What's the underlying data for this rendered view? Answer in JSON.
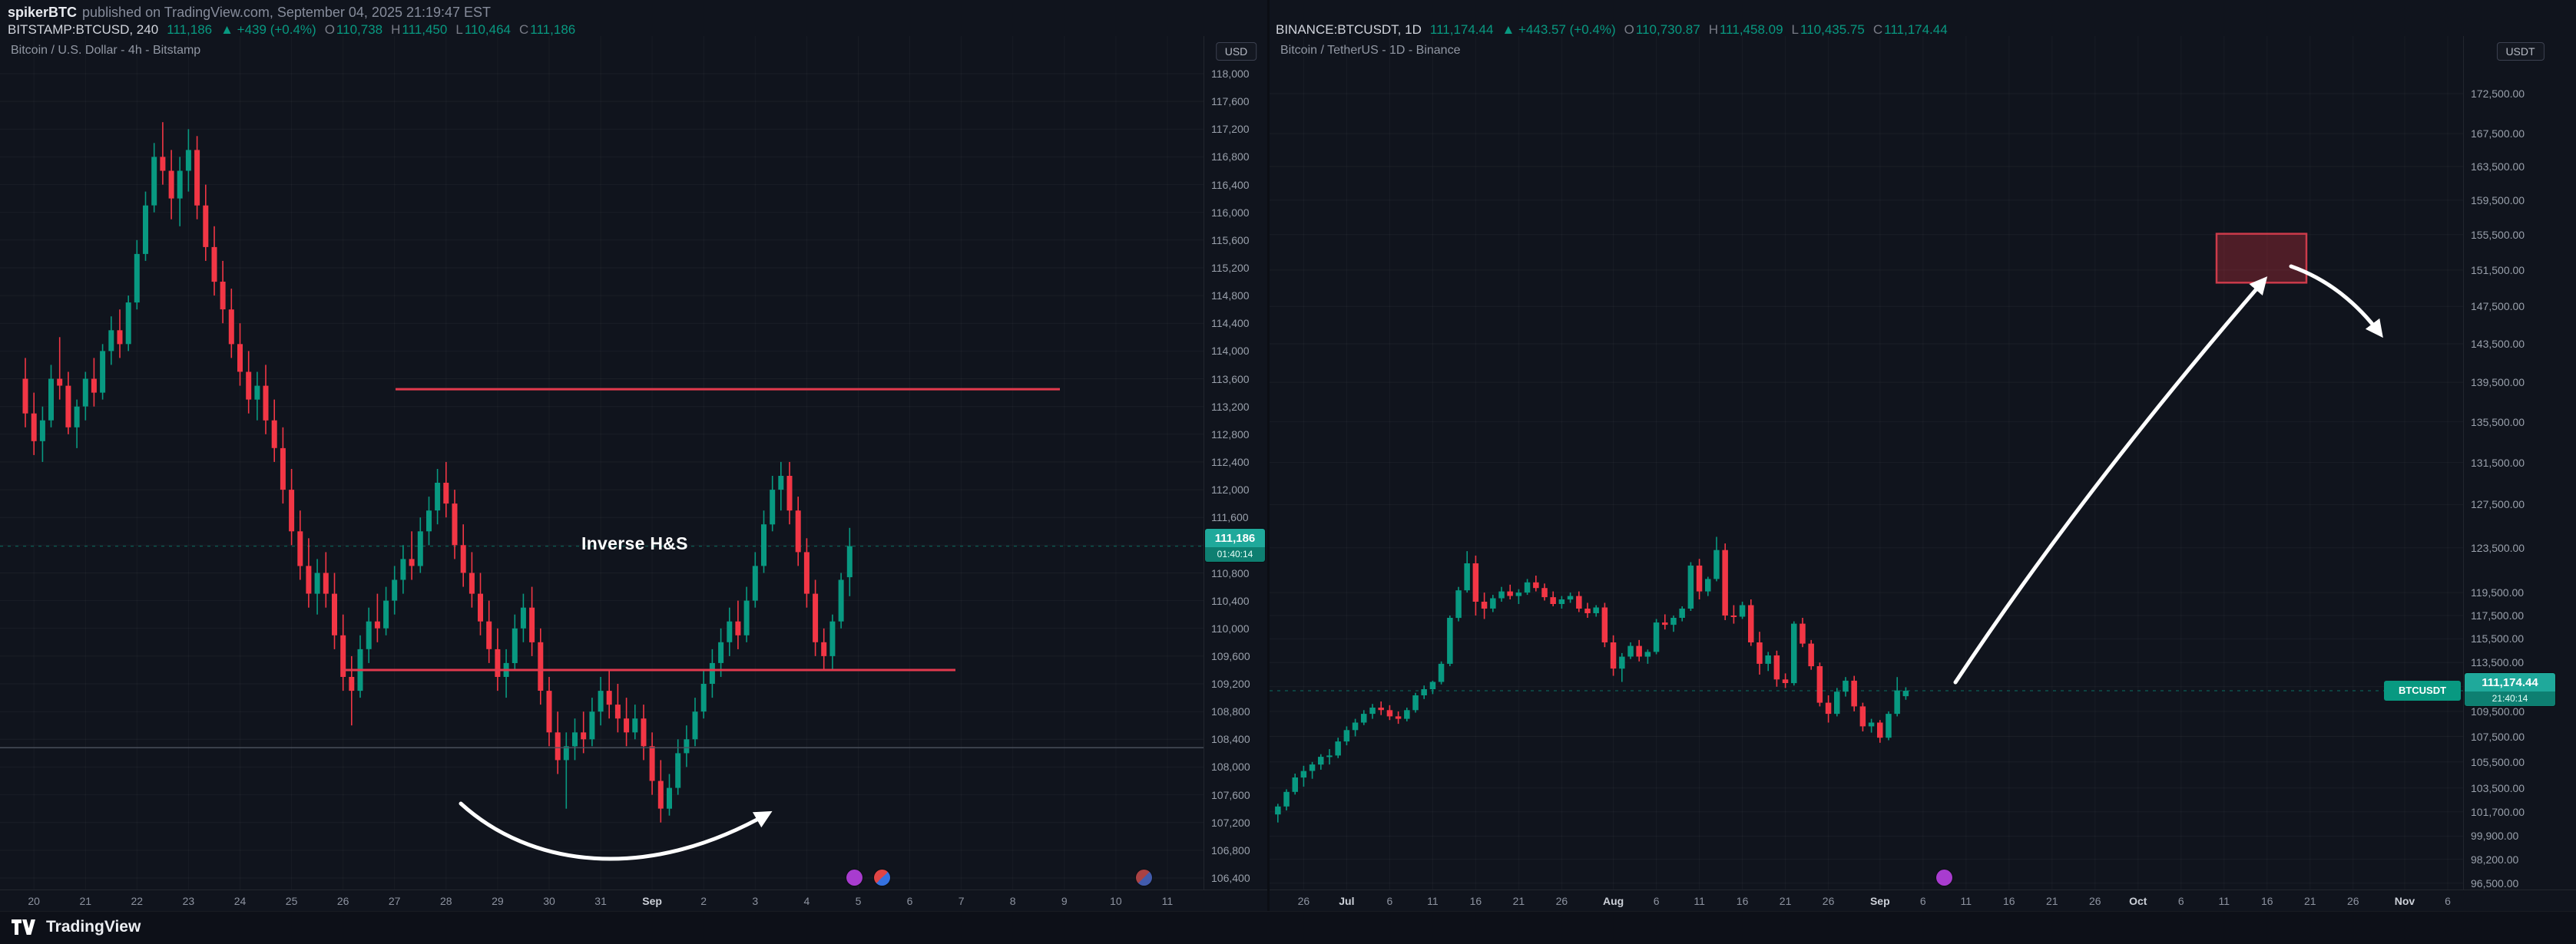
{
  "header": {
    "byline_user": "spikerBTC",
    "byline_rest": "published on TradingView.com, September 04, 2025 21:19:47 EST"
  },
  "colors": {
    "up": "#089981",
    "down": "#f23645",
    "level_red": "#e23a4e",
    "level_gray": "#4d5360",
    "badge": "#1fa99b",
    "annotation_white": "#ffffff"
  },
  "footer": {
    "brand": "TradingView",
    "logo_icon": "tradingview-logo-icon"
  },
  "left": {
    "title": "Bitcoin / U.S. Dollar - 4h - Bitstamp",
    "currency": "USD",
    "legend": {
      "symbol": "BITSTAMP:BTCUSD, 240",
      "last": "111,186",
      "change": "▲ +439 (+0.4%)",
      "o_label": "O",
      "o": "110,738",
      "h_label": "H",
      "h": "111,450",
      "l_label": "L",
      "l": "110,464",
      "c_label": "C",
      "c": "111,186"
    },
    "badge": {
      "price": "111,186",
      "countdown": "01:40:14"
    },
    "annotation": "Inverse H&S",
    "y_axis": {
      "price_top": 118000,
      "price_bottom": 106400
    },
    "y_labels": [
      "118,000",
      "117,600",
      "117,200",
      "116,800",
      "116,400",
      "116,000",
      "115,600",
      "115,200",
      "114,800",
      "114,400",
      "114,000",
      "113,600",
      "113,200",
      "112,800",
      "112,400",
      "112,000",
      "111,600",
      "111,200",
      "110,800",
      "110,400",
      "110,000",
      "109,600",
      "109,200",
      "108,800",
      "108,400",
      "108,000",
      "107,600",
      "107,200",
      "106,800",
      "106,400"
    ],
    "x_labels": [
      [
        "20",
        1
      ],
      [
        "21",
        7
      ],
      [
        "22",
        13
      ],
      [
        "23",
        19
      ],
      [
        "24",
        25
      ],
      [
        "25",
        31
      ],
      [
        "26",
        37
      ],
      [
        "27",
        43
      ],
      [
        "28",
        49
      ],
      [
        "29",
        55
      ],
      [
        "30",
        61
      ],
      [
        "31",
        67
      ],
      [
        "Sep",
        73
      ],
      [
        "2",
        79
      ],
      [
        "3",
        85
      ],
      [
        "4",
        91
      ],
      [
        "5",
        97
      ],
      [
        "6",
        103
      ],
      [
        "7",
        109
      ],
      [
        "8",
        115
      ],
      [
        "9",
        121
      ],
      [
        "10",
        127
      ],
      [
        "11",
        133
      ]
    ],
    "levels": [
      {
        "name": "resistance-line",
        "price": 113450
      },
      {
        "name": "neckline-support",
        "price": 109400
      },
      {
        "name": "gray-level-line",
        "price": 108280
      }
    ],
    "last_price": 111186,
    "candles": [
      [
        113600,
        113900,
        112900,
        113100
      ],
      [
        113100,
        113400,
        112500,
        112700
      ],
      [
        112700,
        113200,
        112400,
        113000
      ],
      [
        113000,
        113800,
        112900,
        113600
      ],
      [
        113600,
        114200,
        113300,
        113500
      ],
      [
        113500,
        113700,
        112800,
        112900
      ],
      [
        112900,
        113300,
        112600,
        113200
      ],
      [
        113200,
        113700,
        113000,
        113600
      ],
      [
        113600,
        113900,
        113200,
        113400
      ],
      [
        113400,
        114100,
        113300,
        114000
      ],
      [
        114000,
        114500,
        113800,
        114300
      ],
      [
        114300,
        114600,
        113900,
        114100
      ],
      [
        114100,
        114800,
        114000,
        114700
      ],
      [
        114700,
        115600,
        114600,
        115400
      ],
      [
        115400,
        116300,
        115300,
        116100
      ],
      [
        116100,
        117000,
        116000,
        116800
      ],
      [
        116800,
        117300,
        116400,
        116600
      ],
      [
        116600,
        116900,
        115900,
        116200
      ],
      [
        116200,
        116800,
        115800,
        116600
      ],
      [
        116600,
        117200,
        116300,
        116900
      ],
      [
        116900,
        117100,
        115900,
        116100
      ],
      [
        116100,
        116400,
        115300,
        115500
      ],
      [
        115500,
        115800,
        114800,
        115000
      ],
      [
        115000,
        115300,
        114400,
        114600
      ],
      [
        114600,
        114900,
        113900,
        114100
      ],
      [
        114100,
        114400,
        113500,
        113700
      ],
      [
        113700,
        114000,
        113100,
        113300
      ],
      [
        113300,
        113700,
        113000,
        113500
      ],
      [
        113500,
        113800,
        112800,
        113000
      ],
      [
        113000,
        113300,
        112400,
        112600
      ],
      [
        112600,
        112900,
        111800,
        112000
      ],
      [
        112000,
        112300,
        111200,
        111400
      ],
      [
        111400,
        111700,
        110700,
        110900
      ],
      [
        110900,
        111300,
        110300,
        110500
      ],
      [
        110500,
        111000,
        110200,
        110800
      ],
      [
        110800,
        111100,
        110300,
        110500
      ],
      [
        110500,
        110800,
        109700,
        109900
      ],
      [
        109900,
        110200,
        109100,
        109300
      ],
      [
        109300,
        109600,
        108600,
        109100
      ],
      [
        109100,
        109900,
        109000,
        109700
      ],
      [
        109700,
        110300,
        109500,
        110100
      ],
      [
        110100,
        110500,
        109800,
        110000
      ],
      [
        110000,
        110600,
        109900,
        110400
      ],
      [
        110400,
        110900,
        110200,
        110700
      ],
      [
        110700,
        111200,
        110500,
        111000
      ],
      [
        111000,
        111400,
        110700,
        110900
      ],
      [
        110900,
        111600,
        110800,
        111400
      ],
      [
        111400,
        111900,
        111200,
        111700
      ],
      [
        111700,
        112300,
        111500,
        112100
      ],
      [
        112100,
        112400,
        111600,
        111800
      ],
      [
        111800,
        112000,
        111000,
        111200
      ],
      [
        111200,
        111500,
        110600,
        110800
      ],
      [
        110800,
        111100,
        110300,
        110500
      ],
      [
        110500,
        110800,
        109900,
        110100
      ],
      [
        110100,
        110400,
        109500,
        109700
      ],
      [
        109700,
        110000,
        109100,
        109300
      ],
      [
        109300,
        109700,
        109000,
        109500
      ],
      [
        109500,
        110200,
        109400,
        110000
      ],
      [
        110000,
        110500,
        109800,
        110300
      ],
      [
        110300,
        110600,
        109600,
        109800
      ],
      [
        109800,
        110000,
        108900,
        109100
      ],
      [
        109100,
        109300,
        108300,
        108500
      ],
      [
        108500,
        108800,
        107900,
        108100
      ],
      [
        108100,
        108500,
        107400,
        108300
      ],
      [
        108300,
        108700,
        108100,
        108500
      ],
      [
        108500,
        108800,
        108200,
        108400
      ],
      [
        108400,
        109000,
        108300,
        108800
      ],
      [
        108800,
        109300,
        108600,
        109100
      ],
      [
        109100,
        109400,
        108700,
        108900
      ],
      [
        108900,
        109200,
        108500,
        108700
      ],
      [
        108700,
        109000,
        108300,
        108500
      ],
      [
        108500,
        108900,
        108400,
        108700
      ],
      [
        108700,
        108900,
        108100,
        108300
      ],
      [
        108300,
        108500,
        107600,
        107800
      ],
      [
        107800,
        108100,
        107200,
        107400
      ],
      [
        107400,
        107900,
        107300,
        107700
      ],
      [
        107700,
        108400,
        107600,
        108200
      ],
      [
        108200,
        108600,
        108000,
        108400
      ],
      [
        108400,
        109000,
        108300,
        108800
      ],
      [
        108800,
        109400,
        108700,
        109200
      ],
      [
        109200,
        109700,
        109000,
        109500
      ],
      [
        109500,
        110000,
        109300,
        109800
      ],
      [
        109800,
        110300,
        109600,
        110100
      ],
      [
        110100,
        110400,
        109700,
        109900
      ],
      [
        109900,
        110600,
        109800,
        110400
      ],
      [
        110400,
        111100,
        110300,
        110900
      ],
      [
        110900,
        111700,
        110800,
        111500
      ],
      [
        111500,
        112200,
        111400,
        112000
      ],
      [
        112000,
        112400,
        111700,
        112200
      ],
      [
        112200,
        112400,
        111500,
        111700
      ],
      [
        111700,
        111900,
        110900,
        111100
      ],
      [
        111100,
        111300,
        110300,
        110500
      ],
      [
        110500,
        110700,
        109600,
        109800
      ],
      [
        109800,
        110000,
        109400,
        109600
      ],
      [
        109600,
        110200,
        109400,
        110100
      ],
      [
        110100,
        110800,
        110000,
        110700
      ],
      [
        110738,
        111450,
        110464,
        111186
      ]
    ],
    "event_icons": [
      "calendar-event-purple",
      "economic-event-flag",
      "economic-event-flag-2"
    ]
  },
  "right": {
    "title": "Bitcoin / TetherUS - 1D - Binance",
    "currency": "USDT",
    "symbol_tag": "BTCUSDT",
    "legend": {
      "symbol": "BINANCE:BTCUSDT, 1D",
      "last": "111,174.44",
      "change": "▲ +443.57 (+0.4%)",
      "o_label": "O",
      "o": "110,730.87",
      "h_label": "H",
      "h": "111,458.09",
      "l_label": "L",
      "l": "110,435.75",
      "c_label": "C",
      "c": "111,174.44"
    },
    "badge": {
      "price": "111,174.44",
      "countdown": "21:40:14"
    },
    "y_labels": [
      "172,500.00",
      "167,500.00",
      "163,500.00",
      "159,500.00",
      "155,500.00",
      "151,500.00",
      "147,500.00",
      "143,500.00",
      "139,500.00",
      "135,500.00",
      "131,500.00",
      "127,500.00",
      "123,500.00",
      "119,500.00",
      "117,500.00",
      "115,500.00",
      "113,500.00",
      "111,500.00",
      "109,500.00",
      "107,500.00",
      "105,500.00",
      "103,500.00",
      "101,700.00",
      "99,900.00",
      "98,200.00",
      "96,500.00"
    ],
    "x_labels": [
      [
        "26",
        3
      ],
      [
        "Jul",
        8
      ],
      [
        "6",
        13
      ],
      [
        "11",
        18
      ],
      [
        "16",
        23
      ],
      [
        "21",
        28
      ],
      [
        "26",
        33
      ],
      [
        "Aug",
        39
      ],
      [
        "6",
        44
      ],
      [
        "11",
        49
      ],
      [
        "16",
        54
      ],
      [
        "21",
        59
      ],
      [
        "26",
        64
      ],
      [
        "Sep",
        70
      ],
      [
        "6",
        75
      ],
      [
        "11",
        80
      ],
      [
        "16",
        85
      ],
      [
        "21",
        90
      ],
      [
        "26",
        95
      ],
      [
        "Oct",
        100
      ],
      [
        "6",
        105
      ],
      [
        "11",
        110
      ],
      [
        "16",
        115
      ],
      [
        "21",
        120
      ],
      [
        "26",
        125
      ],
      [
        "Nov",
        131
      ],
      [
        "6",
        136
      ]
    ],
    "target_box": {
      "price_top": 155600,
      "price_bottom": 150100
    },
    "last_price": 111174.44,
    "candles": [
      [
        101500,
        102300,
        100900,
        102100
      ],
      [
        102100,
        103400,
        101800,
        103200
      ],
      [
        103200,
        104600,
        103000,
        104300
      ],
      [
        104300,
        105200,
        103600,
        104800
      ],
      [
        104800,
        105500,
        104200,
        105300
      ],
      [
        105300,
        106100,
        104900,
        105900
      ],
      [
        105900,
        106500,
        105300,
        106000
      ],
      [
        106000,
        107400,
        105800,
        107100
      ],
      [
        107100,
        108300,
        106800,
        108000
      ],
      [
        108000,
        108900,
        107500,
        108600
      ],
      [
        108600,
        109600,
        108400,
        109300
      ],
      [
        109300,
        110100,
        108900,
        109800
      ],
      [
        109800,
        110300,
        109200,
        109600
      ],
      [
        109600,
        110000,
        108800,
        109100
      ],
      [
        109100,
        109500,
        108500,
        108900
      ],
      [
        108900,
        109800,
        108700,
        109600
      ],
      [
        109600,
        111000,
        109400,
        110800
      ],
      [
        110800,
        111600,
        110500,
        111300
      ],
      [
        111300,
        112000,
        110900,
        111900
      ],
      [
        111900,
        113600,
        111700,
        113400
      ],
      [
        113400,
        117500,
        113200,
        117300
      ],
      [
        117300,
        120000,
        117000,
        119700
      ],
      [
        119700,
        123200,
        119500,
        122100
      ],
      [
        122100,
        122800,
        117500,
        118700
      ],
      [
        118700,
        119500,
        117200,
        118100
      ],
      [
        118100,
        119300,
        117800,
        119000
      ],
      [
        119000,
        120000,
        118700,
        119600
      ],
      [
        119600,
        120200,
        118900,
        119200
      ],
      [
        119200,
        119800,
        118500,
        119500
      ],
      [
        119500,
        120700,
        119300,
        120400
      ],
      [
        120400,
        121000,
        119600,
        119900
      ],
      [
        119900,
        120300,
        118800,
        119100
      ],
      [
        119100,
        119600,
        118300,
        118500
      ],
      [
        118500,
        119200,
        118100,
        118900
      ],
      [
        118900,
        119500,
        118600,
        119200
      ],
      [
        119200,
        119600,
        117800,
        118100
      ],
      [
        118100,
        118600,
        117300,
        117700
      ],
      [
        117700,
        118400,
        117400,
        118200
      ],
      [
        118200,
        118600,
        114800,
        115200
      ],
      [
        115200,
        115800,
        112400,
        113000
      ],
      [
        113000,
        114300,
        111900,
        114000
      ],
      [
        114000,
        115200,
        113800,
        114900
      ],
      [
        114900,
        115400,
        113600,
        114000
      ],
      [
        114000,
        114600,
        113400,
        114400
      ],
      [
        114400,
        117200,
        114200,
        116900
      ],
      [
        116900,
        117600,
        116300,
        116700
      ],
      [
        116700,
        117500,
        116100,
        117300
      ],
      [
        117300,
        118300,
        117000,
        118100
      ],
      [
        118100,
        122200,
        117900,
        121900
      ],
      [
        121900,
        122500,
        118900,
        119600
      ],
      [
        119600,
        120900,
        119200,
        120700
      ],
      [
        120700,
        124500,
        120500,
        123300
      ],
      [
        123300,
        123900,
        117100,
        117500
      ],
      [
        117500,
        118400,
        116800,
        117400
      ],
      [
        117400,
        118700,
        117200,
        118400
      ],
      [
        118400,
        118900,
        114900,
        115200
      ],
      [
        115200,
        116100,
        112500,
        113400
      ],
      [
        113400,
        114400,
        112800,
        114100
      ],
      [
        114100,
        114500,
        111500,
        112100
      ],
      [
        112100,
        112600,
        111400,
        111800
      ],
      [
        111800,
        117000,
        111600,
        116800
      ],
      [
        116800,
        117300,
        114800,
        115100
      ],
      [
        115100,
        115400,
        112900,
        113200
      ],
      [
        113200,
        113500,
        109900,
        110200
      ],
      [
        110200,
        110800,
        108600,
        109300
      ],
      [
        109300,
        111400,
        109100,
        111100
      ],
      [
        111100,
        112300,
        110700,
        112000
      ],
      [
        112000,
        112400,
        109500,
        109900
      ],
      [
        109900,
        110200,
        107900,
        108300
      ],
      [
        108300,
        108900,
        107800,
        108600
      ],
      [
        108600,
        108800,
        107000,
        107400
      ],
      [
        107400,
        109500,
        107200,
        109300
      ],
      [
        109300,
        112300,
        109100,
        111200
      ],
      [
        110730,
        111458,
        110435,
        111174
      ]
    ],
    "event_icons": [
      "calendar-event-purple"
    ]
  }
}
